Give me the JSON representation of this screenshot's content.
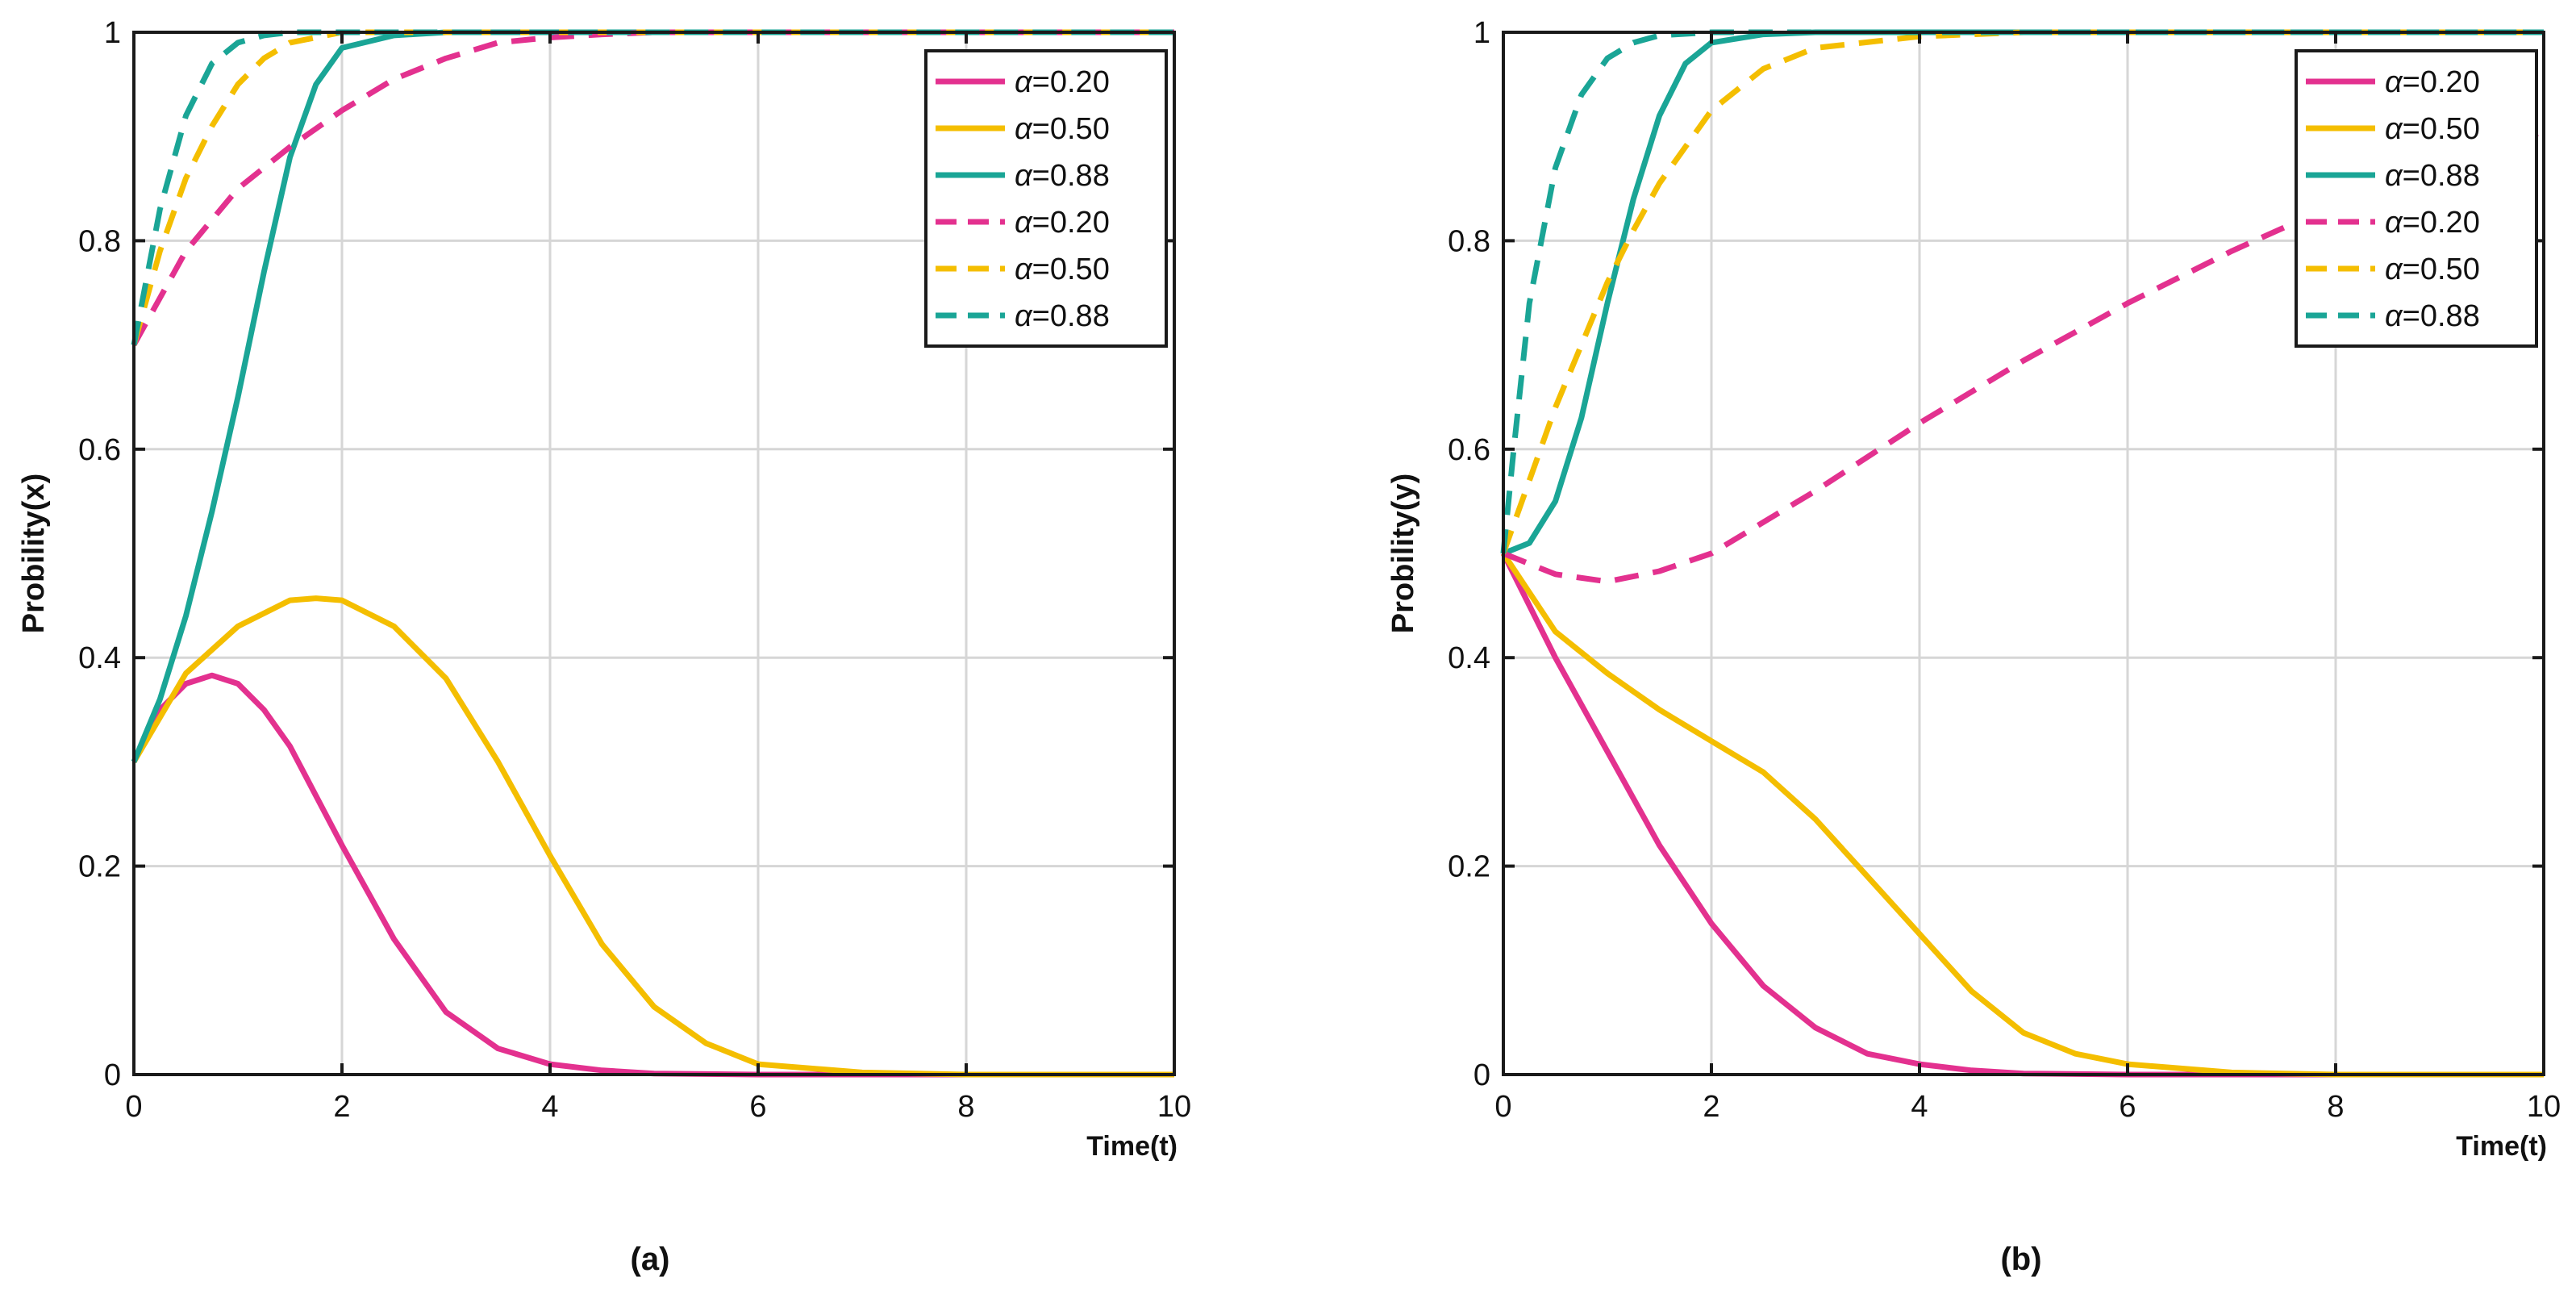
{
  "chart_data": [
    {
      "type": "line",
      "panel_label": "(a)",
      "xlabel": "Time(t)",
      "ylabel": "Probility(x)",
      "xlim": [
        0,
        10
      ],
      "ylim": [
        0,
        1
      ],
      "x_ticks": [
        "0",
        "2",
        "4",
        "6",
        "8",
        "10"
      ],
      "y_ticks": [
        "0",
        "0.2",
        "0.4",
        "0.6",
        "0.8",
        "1"
      ],
      "grid": true,
      "legend_position": "top-right",
      "series": [
        {
          "name": "α=0.20",
          "color": "#e3318f",
          "style": "solid",
          "x": [
            0,
            0.25,
            0.5,
            0.75,
            1.0,
            1.25,
            1.5,
            2,
            2.5,
            3,
            3.5,
            4,
            4.5,
            5,
            6,
            7,
            8,
            9,
            10
          ],
          "y": [
            0.3,
            0.35,
            0.375,
            0.383,
            0.375,
            0.35,
            0.315,
            0.22,
            0.13,
            0.06,
            0.025,
            0.01,
            0.004,
            0.001,
            0,
            0,
            0,
            0,
            0
          ]
        },
        {
          "name": "α=0.50",
          "color": "#f4be00",
          "style": "solid",
          "x": [
            0,
            0.5,
            1.0,
            1.5,
            1.75,
            2.0,
            2.5,
            3.0,
            3.5,
            4.0,
            4.5,
            5.0,
            5.5,
            6.0,
            7.0,
            8.0,
            9.0,
            10.0
          ],
          "y": [
            0.3,
            0.385,
            0.43,
            0.455,
            0.457,
            0.455,
            0.43,
            0.38,
            0.3,
            0.21,
            0.125,
            0.065,
            0.03,
            0.01,
            0.002,
            0,
            0,
            0
          ]
        },
        {
          "name": "α=0.88",
          "color": "#1aa596",
          "style": "solid",
          "x": [
            0,
            0.25,
            0.5,
            0.75,
            1.0,
            1.25,
            1.5,
            1.75,
            2.0,
            2.5,
            3.0,
            4.0,
            5.0,
            6.0,
            7.0,
            8.0,
            9.0,
            10.0
          ],
          "y": [
            0.3,
            0.36,
            0.44,
            0.54,
            0.65,
            0.77,
            0.88,
            0.95,
            0.985,
            0.997,
            1,
            1,
            1,
            1,
            1,
            1,
            1,
            1
          ]
        },
        {
          "name": "α=0.20",
          "color": "#e3318f",
          "style": "dashed",
          "x": [
            0,
            0.5,
            1.0,
            1.5,
            2.0,
            2.5,
            3.0,
            3.5,
            4.0,
            4.5,
            5.0,
            6.0,
            7.0,
            8.0,
            9.0,
            10.0
          ],
          "y": [
            0.7,
            0.79,
            0.85,
            0.89,
            0.925,
            0.955,
            0.975,
            0.99,
            0.995,
            0.998,
            1,
            1,
            1,
            1,
            1,
            1
          ]
        },
        {
          "name": "α=0.50",
          "color": "#f4be00",
          "style": "dashed",
          "x": [
            0,
            0.25,
            0.5,
            0.75,
            1.0,
            1.25,
            1.5,
            1.75,
            2.0,
            2.5,
            3.0,
            4.0,
            5.0,
            6.0,
            7.0,
            8.0,
            9.0,
            10.0
          ],
          "y": [
            0.7,
            0.79,
            0.86,
            0.91,
            0.95,
            0.975,
            0.99,
            0.995,
            1,
            1,
            1,
            1,
            1,
            1,
            1,
            1,
            1,
            1
          ]
        },
        {
          "name": "α=0.88",
          "color": "#1aa596",
          "style": "dashed",
          "x": [
            0,
            0.25,
            0.5,
            0.75,
            1.0,
            1.25,
            1.5,
            2.0,
            3.0,
            4.0,
            5.0,
            6.0,
            7.0,
            8.0,
            9.0,
            10.0
          ],
          "y": [
            0.7,
            0.83,
            0.92,
            0.97,
            0.99,
            0.997,
            1,
            1,
            1,
            1,
            1,
            1,
            1,
            1,
            1,
            1
          ]
        }
      ]
    },
    {
      "type": "line",
      "panel_label": "(b)",
      "xlabel": "Time(t)",
      "ylabel": "Probility(y)",
      "xlim": [
        0,
        10
      ],
      "ylim": [
        0,
        1
      ],
      "x_ticks": [
        "0",
        "2",
        "4",
        "6",
        "8",
        "10"
      ],
      "y_ticks": [
        "0",
        "0.2",
        "0.4",
        "0.6",
        "0.8",
        "1"
      ],
      "grid": true,
      "legend_position": "top-right",
      "series": [
        {
          "name": "α=0.20",
          "color": "#e3318f",
          "style": "solid",
          "x": [
            0,
            0.5,
            1.0,
            1.5,
            2.0,
            2.5,
            3.0,
            3.5,
            4.0,
            4.5,
            5.0,
            6.0,
            7.0,
            8.0,
            9.0,
            10.0
          ],
          "y": [
            0.5,
            0.4,
            0.31,
            0.22,
            0.145,
            0.085,
            0.045,
            0.02,
            0.01,
            0.004,
            0.001,
            0,
            0,
            0,
            0,
            0
          ]
        },
        {
          "name": "α=0.50",
          "color": "#f4be00",
          "style": "solid",
          "x": [
            0,
            0.5,
            1.0,
            1.5,
            2.0,
            2.5,
            3.0,
            3.5,
            4.0,
            4.5,
            5.0,
            5.5,
            6.0,
            7.0,
            8.0,
            9.0,
            10.0
          ],
          "y": [
            0.5,
            0.425,
            0.385,
            0.35,
            0.32,
            0.29,
            0.245,
            0.19,
            0.135,
            0.08,
            0.04,
            0.02,
            0.01,
            0.002,
            0,
            0,
            0
          ]
        },
        {
          "name": "α=0.88",
          "color": "#1aa596",
          "style": "solid",
          "x": [
            0,
            0.25,
            0.5,
            0.75,
            1.0,
            1.25,
            1.5,
            1.75,
            2.0,
            2.5,
            3.0,
            4.0,
            5.0,
            6.0,
            7.0,
            8.0,
            9.0,
            10.0
          ],
          "y": [
            0.5,
            0.51,
            0.55,
            0.63,
            0.74,
            0.84,
            0.92,
            0.97,
            0.99,
            0.998,
            1,
            1,
            1,
            1,
            1,
            1,
            1,
            1
          ]
        },
        {
          "name": "α=0.20",
          "color": "#e3318f",
          "style": "dashed",
          "x": [
            0,
            0.5,
            1.0,
            1.5,
            2.0,
            3.0,
            4.0,
            5.0,
            6.0,
            7.0,
            8.0,
            9.0,
            10.0
          ],
          "y": [
            0.5,
            0.48,
            0.473,
            0.483,
            0.5,
            0.56,
            0.625,
            0.685,
            0.74,
            0.79,
            0.835,
            0.87,
            0.905
          ]
        },
        {
          "name": "α=0.50",
          "color": "#f4be00",
          "style": "dashed",
          "x": [
            0,
            0.25,
            0.5,
            0.75,
            1.0,
            1.25,
            1.5,
            2.0,
            2.5,
            3.0,
            4.0,
            5.0,
            6.0,
            7.0,
            8.0,
            9.0,
            10.0
          ],
          "y": [
            0.5,
            0.57,
            0.64,
            0.7,
            0.76,
            0.81,
            0.855,
            0.925,
            0.965,
            0.985,
            0.996,
            1,
            1,
            1,
            1,
            1,
            1
          ]
        },
        {
          "name": "α=0.88",
          "color": "#1aa596",
          "style": "dashed",
          "x": [
            0,
            0.1,
            0.25,
            0.5,
            0.75,
            1.0,
            1.25,
            1.5,
            2.0,
            3.0,
            4.0,
            5.0,
            6.0,
            7.0,
            8.0,
            9.0,
            10.0
          ],
          "y": [
            0.5,
            0.6,
            0.74,
            0.87,
            0.94,
            0.975,
            0.99,
            0.997,
            1,
            1,
            1,
            1,
            1,
            1,
            1,
            1,
            1
          ]
        }
      ]
    }
  ]
}
